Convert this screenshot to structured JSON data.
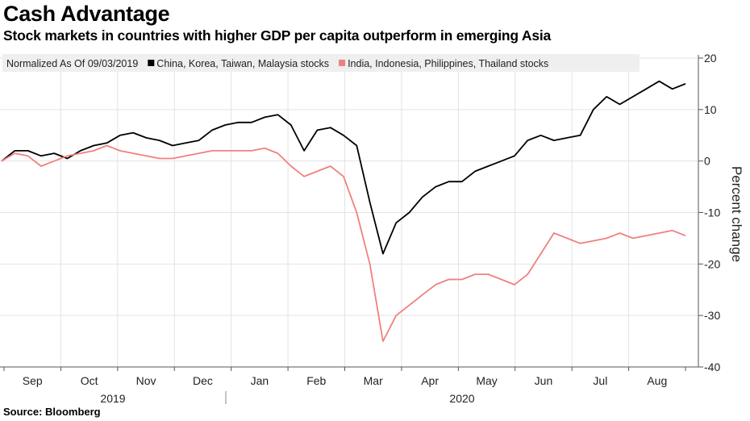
{
  "title": "Cash Advantage",
  "subtitle": "Stock markets in countries with higher GDP per capita outperform in emerging Asia",
  "source": "Source: Bloomberg",
  "chart_data": {
    "type": "line",
    "ylabel": "Percent change",
    "ylim": [
      -40,
      20
    ],
    "yticks": [
      20,
      10,
      0,
      -10,
      -20,
      -30,
      -40
    ],
    "grid": true,
    "legend": {
      "note": "Normalized As Of 09/03/2019",
      "placement": "top-left"
    },
    "x_month_labels": [
      "Sep",
      "Oct",
      "Nov",
      "Dec",
      "Jan",
      "Feb",
      "Mar",
      "Apr",
      "May",
      "Jun",
      "Jul",
      "Aug"
    ],
    "x_year_labels": [
      "2019",
      "2020"
    ],
    "x_range_weeks": [
      0,
      52
    ],
    "series": [
      {
        "name": "China, Korea, Taiwan, Malaysia stocks",
        "color": "#000000",
        "x": [
          0,
          1,
          2,
          3,
          4,
          5,
          6,
          7,
          8,
          9,
          10,
          11,
          12,
          13,
          14,
          15,
          16,
          17,
          18,
          19,
          20,
          21,
          22,
          23,
          24,
          25,
          26,
          27,
          28,
          29,
          30,
          31,
          32,
          33,
          34,
          35,
          36,
          37,
          38,
          39,
          40,
          41,
          42,
          43,
          44,
          45,
          46,
          47,
          48,
          49,
          50,
          51,
          52
        ],
        "values": [
          0,
          2,
          2,
          1,
          1.5,
          0.5,
          2,
          3,
          3.5,
          5,
          5.5,
          4.5,
          4,
          3,
          3.5,
          4,
          6,
          7,
          7.5,
          7.5,
          8.5,
          9,
          7,
          2,
          6,
          6.5,
          5,
          3,
          -8,
          -18,
          -12,
          -10,
          -7,
          -5,
          -4,
          -4,
          -2,
          -1,
          0,
          1,
          4,
          5,
          4,
          4.5,
          5,
          10,
          12.5,
          11,
          12.5,
          14,
          15.5,
          14,
          15
        ]
      },
      {
        "name": "India, Indonesia, Philippines, Thailand stocks",
        "color": "#f08080",
        "x": [
          0,
          1,
          2,
          3,
          4,
          5,
          6,
          7,
          8,
          9,
          10,
          11,
          12,
          13,
          14,
          15,
          16,
          17,
          18,
          19,
          20,
          21,
          22,
          23,
          24,
          25,
          26,
          27,
          28,
          29,
          30,
          31,
          32,
          33,
          34,
          35,
          36,
          37,
          38,
          39,
          40,
          41,
          42,
          43,
          44,
          45,
          46,
          47,
          48,
          49,
          50,
          51,
          52
        ],
        "values": [
          0,
          1.5,
          1,
          -1,
          0,
          1,
          1.5,
          2,
          3,
          2,
          1.5,
          1,
          0.5,
          0.5,
          1,
          1.5,
          2,
          2,
          2,
          2,
          2.5,
          1.5,
          -1,
          -3,
          -2,
          -1,
          -3,
          -10,
          -20,
          -35,
          -30,
          -28,
          -26,
          -24,
          -23,
          -23,
          -22,
          -22,
          -23,
          -24,
          -22,
          -18,
          -14,
          -15,
          -16,
          -15.5,
          -15,
          -14,
          -15,
          -14.5,
          -14,
          -13.5,
          -14.5
        ]
      }
    ]
  }
}
